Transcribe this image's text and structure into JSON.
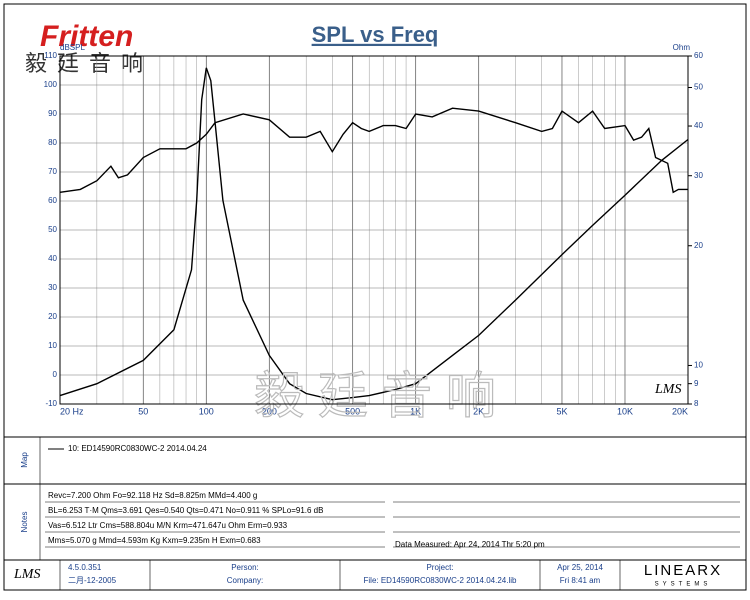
{
  "header": {
    "logo": "Fritten",
    "logo_cn": "毅廷音响"
  },
  "watermark": "毅 廷 音 响",
  "plot_logo": "LMS",
  "chart_data": {
    "type": "line",
    "title": "SPL vs Freq",
    "ylabel": "dBSPL",
    "y2label": "Ohm",
    "xscale": "log",
    "xlim": [
      20,
      20000
    ],
    "xticks": [
      {
        "value": 20,
        "label": "20 Hz"
      },
      50,
      100,
      200,
      500,
      {
        "value": 1000,
        "label": "1K"
      },
      {
        "value": 2000,
        "label": "2K"
      },
      {
        "value": 5000,
        "label": "5K"
      },
      {
        "value": 10000,
        "label": "10K"
      },
      {
        "value": 20000,
        "label": "20K"
      }
    ],
    "xminorticks": [
      30,
      40,
      60,
      70,
      80,
      90,
      300,
      400,
      600,
      700,
      800,
      900,
      3000,
      4000,
      6000,
      7000,
      8000,
      9000
    ],
    "ylim": [
      -10,
      110
    ],
    "yticks": [
      -10,
      0,
      10,
      20,
      30,
      40,
      50,
      60,
      70,
      80,
      90,
      100,
      110
    ],
    "y2scale": "log",
    "y2lim": [
      8,
      60
    ],
    "y2ticks": [
      8,
      9,
      10,
      20,
      30,
      40,
      50,
      60
    ],
    "grid": true,
    "series": [
      {
        "color": "#000000",
        "x": [
          20,
          25,
          30,
          35,
          38,
          42,
          50,
          60,
          70,
          80,
          90,
          100,
          110,
          150,
          200,
          250,
          300,
          350,
          400,
          450,
          500,
          550,
          600,
          700,
          800,
          900,
          1000,
          1200,
          1500,
          2000,
          3000,
          4000,
          4500,
          5000,
          6000,
          7000,
          8000,
          10000,
          11000,
          12000,
          13000,
          14000,
          16000,
          17000,
          18000,
          20000
        ],
        "values": [
          63,
          64,
          67,
          72,
          68,
          69,
          75,
          78,
          78,
          78,
          80,
          83,
          87,
          90,
          88,
          82,
          82,
          84,
          77,
          83,
          87,
          85,
          84,
          86,
          86,
          85,
          90,
          89,
          92,
          91,
          87,
          84,
          85,
          91,
          87,
          91,
          85,
          86,
          81,
          82,
          85,
          75,
          73,
          63,
          64,
          64
        ]
      },
      {
        "color": "#000000",
        "axis": "y2",
        "x": [
          20,
          30,
          50,
          70,
          85,
          90,
          95,
          100,
          105,
          110,
          120,
          150,
          200,
          250,
          300,
          400,
          500,
          600,
          800,
          1000,
          1500,
          2000,
          3000,
          5000,
          7000,
          10000,
          15000,
          20000
        ],
        "values": [
          8.4,
          9,
          10.3,
          12.3,
          17.4,
          26,
          46.6,
          56,
          52,
          41,
          26,
          14.6,
          10.6,
          9,
          8.5,
          8.2,
          8.3,
          8.4,
          8.7,
          9,
          10.6,
          11.9,
          14.6,
          19,
          22.5,
          26.8,
          32.8,
          37
        ]
      }
    ]
  },
  "map": {
    "label": "Map",
    "legend": "10: ED14590RC0830WC-2   2014.04.24"
  },
  "notes": {
    "label": "Notes",
    "lines": [
      "Revc=7.200 Ohm  Fo=92.118 Hz  Sd=8.825m MMd=4.400 g",
      "BL=6.253 T·M  Qms=3.691  Qes=0.540  Qts=0.471  No=0.911 %  SPLo=91.6 dB",
      "Vas=6.512 Ltr  Cms=588.804u M/N  Krm=471.647u Ohm  Erm=0.933",
      "Mms=5.070 g  Mmd=4.593m Kg  Kxm=9.235m H  Exm=0.683"
    ],
    "measured": "Data Measured: Apr 24, 2014  Thr  5:20 pm"
  },
  "footer": {
    "logo": "LMS",
    "version": "4.5.0.351",
    "build": "二月-12-2005",
    "person": "Person:",
    "company": "Company:",
    "project": "Project:",
    "file": "File: ED14590RC0830WC-2 2014.04.24.lib",
    "date": "Apr 25, 2014",
    "time": "Fri  8:41 am",
    "brand": "LINEARX",
    "brand_sub": "SYSTEMS"
  }
}
